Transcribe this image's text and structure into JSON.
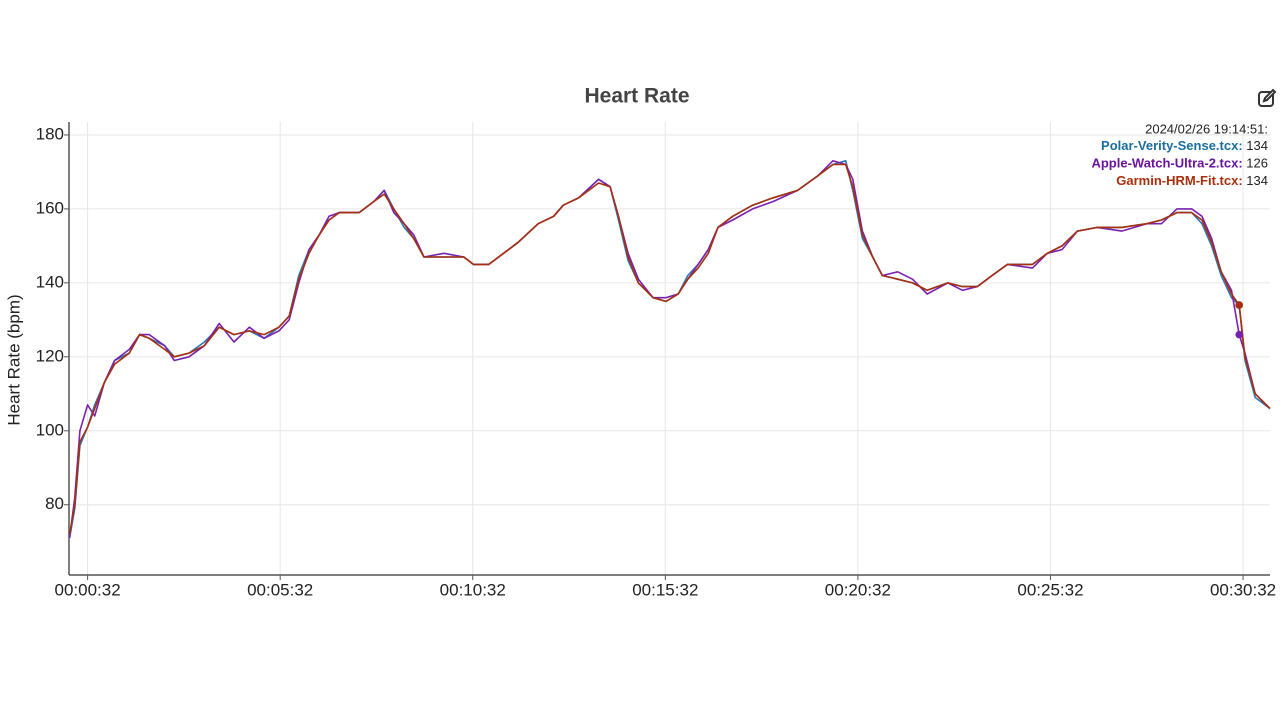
{
  "chart_data": {
    "type": "line",
    "title": "Heart Rate",
    "y_label": "Heart Rate (bpm)",
    "x": [
      4,
      12,
      20,
      32,
      43,
      58,
      74,
      97,
      113,
      128,
      152,
      167,
      190,
      214,
      237,
      260,
      284,
      307,
      330,
      346,
      361,
      377,
      393,
      408,
      424,
      455,
      478,
      494,
      509,
      525,
      540,
      556,
      587,
      618,
      633,
      657,
      680,
      703,
      734,
      758,
      773,
      797,
      828,
      846,
      859,
      874,
      890,
      913,
      933,
      952,
      967,
      983,
      999,
      1014,
      1037,
      1068,
      1100,
      1138,
      1170,
      1193,
      1213,
      1224,
      1239,
      1255,
      1270,
      1294,
      1317,
      1340,
      1372,
      1395,
      1418,
      1441,
      1465,
      1504,
      1527,
      1550,
      1574,
      1605,
      1643,
      1682,
      1705,
      1729,
      1752,
      1768,
      1783,
      1798,
      1814,
      1826,
      1835,
      1851,
      1874
    ],
    "series": [
      {
        "name": "Polar-Verity-Sense.tcx:",
        "color": "#2a78b4",
        "label_color": "#1a6e9e",
        "values": [
          71,
          79,
          96,
          101,
          107,
          113,
          119,
          121,
          126,
          125,
          123,
          120,
          121,
          124,
          128,
          126,
          127,
          125,
          128,
          131,
          142,
          149,
          153,
          157,
          159,
          159,
          162,
          165,
          160,
          155,
          152,
          147,
          147,
          147,
          145,
          145,
          148,
          151,
          156,
          158,
          161,
          163,
          168,
          166,
          157,
          146,
          140,
          136,
          135,
          137,
          142,
          145,
          149,
          155,
          158,
          161,
          163,
          165,
          169,
          172,
          173,
          165,
          152,
          147,
          142,
          141,
          140,
          138,
          140,
          139,
          139,
          142,
          145,
          145,
          148,
          150,
          154,
          155,
          155,
          156,
          157,
          159,
          159,
          156,
          150,
          142,
          136,
          134,
          119,
          109,
          106
        ]
      },
      {
        "name": "Apple-Watch-Ultra-2.tcx:",
        "color": "#7a22b0",
        "label_color": "#6a13a0",
        "values": [
          71,
          82,
          100,
          107,
          104,
          113,
          119,
          122,
          126,
          126,
          123,
          119,
          120,
          123,
          129,
          124,
          128,
          125,
          127,
          130,
          140,
          149,
          153,
          158,
          159,
          159,
          162,
          165,
          159,
          156,
          153,
          147,
          148,
          147,
          145,
          145,
          148,
          151,
          156,
          158,
          161,
          163,
          168,
          166,
          158,
          148,
          141,
          136,
          136,
          137,
          141,
          145,
          149,
          155,
          157,
          160,
          162,
          165,
          169,
          173,
          172,
          168,
          154,
          147,
          142,
          143,
          141,
          137,
          140,
          138,
          139,
          142,
          145,
          144,
          148,
          149,
          154,
          155,
          154,
          156,
          156,
          160,
          160,
          158,
          152,
          143,
          138,
          126,
          121,
          110,
          106
        ]
      },
      {
        "name": "Garmin-HRM-Fit.tcx:",
        "color": "#a8300c",
        "label_color": "#a8300c",
        "values": [
          72,
          80,
          97,
          101,
          106,
          113,
          118,
          121,
          126,
          125,
          122,
          120,
          121,
          123,
          128,
          126,
          127,
          126,
          128,
          131,
          141,
          148,
          153,
          157,
          159,
          159,
          162,
          164,
          160,
          156,
          152,
          147,
          147,
          147,
          145,
          145,
          148,
          151,
          156,
          158,
          161,
          163,
          167,
          166,
          158,
          147,
          140,
          136,
          135,
          137,
          141,
          144,
          148,
          155,
          158,
          161,
          163,
          165,
          169,
          172,
          172,
          166,
          153,
          147,
          142,
          141,
          140,
          138,
          140,
          139,
          139,
          142,
          145,
          145,
          148,
          150,
          154,
          155,
          155,
          156,
          157,
          159,
          159,
          157,
          151,
          143,
          137,
          134,
          120,
          110,
          106
        ]
      }
    ],
    "xlim": [
      3,
      1874
    ],
    "ylim": [
      61,
      183.5
    ],
    "xticks": [
      {
        "value": 32,
        "label": "00:00:32"
      },
      {
        "value": 332,
        "label": "00:05:32"
      },
      {
        "value": 632,
        "label": "00:10:32"
      },
      {
        "value": 932,
        "label": "00:15:32"
      },
      {
        "value": 1232,
        "label": "00:20:32"
      },
      {
        "value": 1532,
        "label": "00:25:32"
      },
      {
        "value": 1832,
        "label": "00:30:32"
      }
    ],
    "yticks": [
      80,
      100,
      120,
      140,
      160,
      180
    ],
    "grid": true,
    "cursor": {
      "title": "2024/02/26 19:14:51:",
      "x": 1826
    }
  }
}
